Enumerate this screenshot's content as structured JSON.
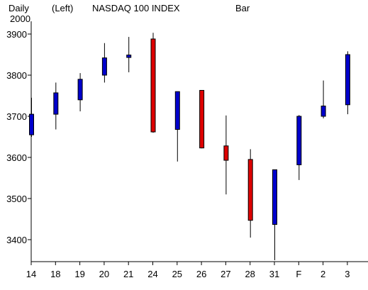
{
  "header": {
    "period": "Daily",
    "axis_side": "(Left)",
    "symbol_title": "NASDAQ 100 INDEX",
    "chart_style": "Bar",
    "year": "2000"
  },
  "colors": {
    "up": "#0000cc",
    "down": "#dd0000",
    "axis": "#000000",
    "background": "#ffffff"
  },
  "chart_data": {
    "type": "candlestick",
    "title": "NASDAQ 100 INDEX",
    "ylim": [
      3335,
      3915
    ],
    "y_ticks": [
      3400,
      3500,
      3600,
      3700,
      3800,
      3900
    ],
    "y_axis_side": "left",
    "grid": false,
    "categories": [
      "14",
      "18",
      "19",
      "20",
      "21",
      "24",
      "25",
      "26",
      "27",
      "28",
      "31",
      "F",
      "2",
      "3"
    ],
    "ohlc": [
      {
        "x": "14",
        "open": 3655,
        "high": 3745,
        "low": 3650,
        "close": 3705
      },
      {
        "x": "18",
        "open": 3705,
        "high": 3782,
        "low": 3668,
        "close": 3757
      },
      {
        "x": "19",
        "open": 3740,
        "high": 3805,
        "low": 3712,
        "close": 3790
      },
      {
        "x": "20",
        "open": 3800,
        "high": 3878,
        "low": 3782,
        "close": 3842
      },
      {
        "x": "21",
        "open": 3843,
        "high": 3893,
        "low": 3807,
        "close": 3849
      },
      {
        "x": "24",
        "open": 3888,
        "high": 3903,
        "low": 3660,
        "close": 3662
      },
      {
        "x": "25",
        "open": 3668,
        "high": 3760,
        "low": 3590,
        "close": 3760
      },
      {
        "x": "26",
        "open": 3763,
        "high": 3763,
        "low": 3622,
        "close": 3623
      },
      {
        "x": "27",
        "open": 3628,
        "high": 3702,
        "low": 3510,
        "close": 3593
      },
      {
        "x": "28",
        "open": 3595,
        "high": 3620,
        "low": 3405,
        "close": 3447
      },
      {
        "x": "31",
        "open": 3437,
        "high": 3570,
        "low": 3350,
        "close": 3570
      },
      {
        "x": "F",
        "open": 3582,
        "high": 3703,
        "low": 3545,
        "close": 3700
      },
      {
        "x": "2",
        "open": 3700,
        "high": 3787,
        "low": 3695,
        "close": 3725
      },
      {
        "x": "3",
        "open": 3728,
        "high": 3858,
        "low": 3705,
        "close": 3850
      }
    ]
  }
}
